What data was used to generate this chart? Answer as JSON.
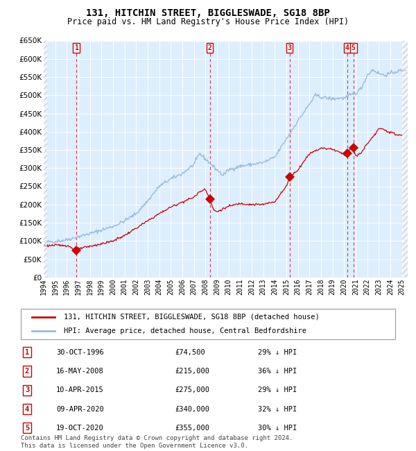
{
  "title": "131, HITCHIN STREET, BIGGLESWADE, SG18 8BP",
  "subtitle": "Price paid vs. HM Land Registry's House Price Index (HPI)",
  "price_paid_label": "131, HITCHIN STREET, BIGGLESWADE, SG18 8BP (detached house)",
  "hpi_label": "HPI: Average price, detached house, Central Bedfordshire",
  "footer": "Contains HM Land Registry data © Crown copyright and database right 2024.\nThis data is licensed under the Open Government Licence v3.0.",
  "price_paid_color": "#cc0000",
  "hpi_color": "#99bbdd",
  "background_color": "#ddeeff",
  "grid_color": "#ffffff",
  "transactions": [
    {
      "num": 1,
      "date": "1996-10-30",
      "price": 74500,
      "pct": "29%",
      "x_year": 1996.83
    },
    {
      "num": 2,
      "date": "2008-05-16",
      "price": 215000,
      "pct": "36%",
      "x_year": 2008.37
    },
    {
      "num": 3,
      "date": "2015-04-10",
      "price": 275000,
      "pct": "29%",
      "x_year": 2015.27
    },
    {
      "num": 4,
      "date": "2020-04-09",
      "price": 340000,
      "pct": "32%",
      "x_year": 2020.27
    },
    {
      "num": 5,
      "date": "2020-10-19",
      "price": 355000,
      "pct": "30%",
      "x_year": 2020.8
    }
  ],
  "transaction_display": [
    {
      "num": 1,
      "date_str": "30-OCT-1996",
      "price_str": "£74,500",
      "pct_str": "29% ↓ HPI"
    },
    {
      "num": 2,
      "date_str": "16-MAY-2008",
      "price_str": "£215,000",
      "pct_str": "36% ↓ HPI"
    },
    {
      "num": 3,
      "date_str": "10-APR-2015",
      "price_str": "£275,000",
      "pct_str": "29% ↓ HPI"
    },
    {
      "num": 4,
      "date_str": "09-APR-2020",
      "price_str": "£340,000",
      "pct_str": "32% ↓ HPI"
    },
    {
      "num": 5,
      "date_str": "19-OCT-2020",
      "price_str": "£355,000",
      "pct_str": "30% ↓ HPI"
    }
  ],
  "ylim": [
    0,
    650000
  ],
  "yticks": [
    0,
    50000,
    100000,
    150000,
    200000,
    250000,
    300000,
    350000,
    400000,
    450000,
    500000,
    550000,
    600000,
    650000
  ],
  "xlim_start": 1994.0,
  "xlim_end": 2025.5,
  "xtick_years": [
    1994,
    1995,
    1996,
    1997,
    1998,
    1999,
    2000,
    2001,
    2002,
    2003,
    2004,
    2005,
    2006,
    2007,
    2008,
    2009,
    2010,
    2011,
    2012,
    2013,
    2014,
    2015,
    2016,
    2017,
    2018,
    2019,
    2020,
    2021,
    2022,
    2023,
    2024,
    2025
  ]
}
